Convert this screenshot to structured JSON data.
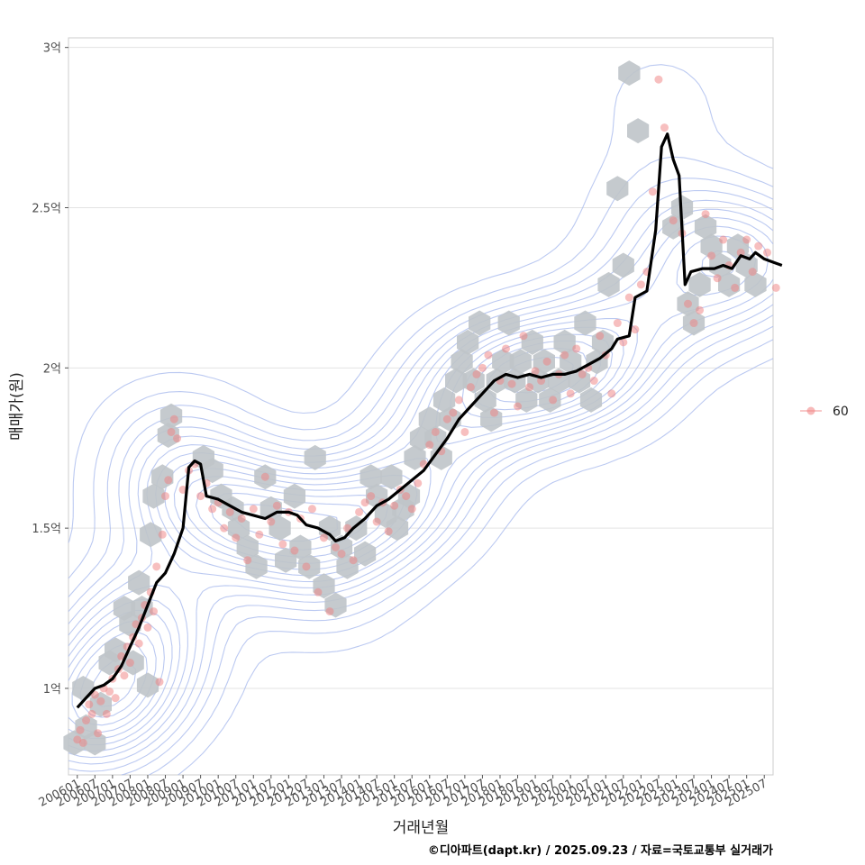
{
  "chart_data": {
    "type": "scatter",
    "title": "",
    "xlabel": "거래년월",
    "ylabel": "매매가(원)",
    "caption": "©디아파트(dapt.kr) / 2025.09.23 / 자료=국토교통부 실거래가",
    "ylim": [
      0.73,
      3.03
    ],
    "y_ticks": [
      {
        "value": 1.0,
        "label": "1억"
      },
      {
        "value": 1.5,
        "label": "1.5억"
      },
      {
        "value": 2.0,
        "label": "2억"
      },
      {
        "value": 2.5,
        "label": "2.5억"
      },
      {
        "value": 3.0,
        "label": "3억"
      }
    ],
    "x_ticks": [
      "200601",
      "200607",
      "200701",
      "200707",
      "200801",
      "200807",
      "200901",
      "200907",
      "201001",
      "201007",
      "201101",
      "201107",
      "201201",
      "201207",
      "201301",
      "201307",
      "201401",
      "201407",
      "201501",
      "201507",
      "201601",
      "201607",
      "201701",
      "201707",
      "201801",
      "201807",
      "201901",
      "201907",
      "202001",
      "202007",
      "202101",
      "202107",
      "202201",
      "202207",
      "202301",
      "202307",
      "202401",
      "202407",
      "202501",
      "202507"
    ],
    "x_domain_months": [
      -3,
      237
    ],
    "legend": {
      "position": "right",
      "entries": [
        {
          "label": "60",
          "color": "#f08080"
        }
      ]
    },
    "series": [
      {
        "name": "moving-average",
        "style": "line",
        "color": "#000000",
        "points": [
          [
            0,
            0.94
          ],
          [
            3,
            0.97
          ],
          [
            6,
            1.0
          ],
          [
            9,
            1.01
          ],
          [
            12,
            1.03
          ],
          [
            15,
            1.07
          ],
          [
            18,
            1.13
          ],
          [
            21,
            1.19
          ],
          [
            24,
            1.26
          ],
          [
            27,
            1.33
          ],
          [
            30,
            1.36
          ],
          [
            33,
            1.42
          ],
          [
            36,
            1.5
          ],
          [
            38,
            1.69
          ],
          [
            40,
            1.71
          ],
          [
            42,
            1.7
          ],
          [
            44,
            1.6
          ],
          [
            48,
            1.59
          ],
          [
            52,
            1.57
          ],
          [
            56,
            1.55
          ],
          [
            60,
            1.54
          ],
          [
            64,
            1.53
          ],
          [
            68,
            1.55
          ],
          [
            72,
            1.55
          ],
          [
            75,
            1.54
          ],
          [
            78,
            1.51
          ],
          [
            82,
            1.5
          ],
          [
            86,
            1.48
          ],
          [
            88,
            1.46
          ],
          [
            91,
            1.47
          ],
          [
            94,
            1.5
          ],
          [
            98,
            1.53
          ],
          [
            102,
            1.57
          ],
          [
            106,
            1.59
          ],
          [
            110,
            1.62
          ],
          [
            114,
            1.65
          ],
          [
            118,
            1.68
          ],
          [
            122,
            1.73
          ],
          [
            126,
            1.78
          ],
          [
            130,
            1.84
          ],
          [
            134,
            1.88
          ],
          [
            138,
            1.92
          ],
          [
            142,
            1.96
          ],
          [
            146,
            1.98
          ],
          [
            150,
            1.97
          ],
          [
            154,
            1.98
          ],
          [
            158,
            1.97
          ],
          [
            162,
            1.98
          ],
          [
            166,
            1.98
          ],
          [
            170,
            1.99
          ],
          [
            174,
            2.01
          ],
          [
            178,
            2.03
          ],
          [
            182,
            2.06
          ],
          [
            184,
            2.09
          ],
          [
            188,
            2.1
          ],
          [
            190,
            2.22
          ],
          [
            194,
            2.24
          ],
          [
            197,
            2.43
          ],
          [
            199,
            2.69
          ],
          [
            201,
            2.73
          ],
          [
            203,
            2.65
          ],
          [
            205,
            2.6
          ],
          [
            207,
            2.26
          ],
          [
            209,
            2.3
          ],
          [
            213,
            2.31
          ],
          [
            217,
            2.31
          ],
          [
            220,
            2.32
          ],
          [
            223,
            2.31
          ],
          [
            226,
            2.35
          ],
          [
            229,
            2.34
          ],
          [
            231,
            2.36
          ],
          [
            234,
            2.34
          ],
          [
            237,
            2.33
          ],
          [
            240,
            2.32
          ]
        ]
      },
      {
        "name": "60",
        "style": "points",
        "color": "#f08080",
        "points": [
          [
            0,
            0.84
          ],
          [
            1,
            0.87
          ],
          [
            2,
            0.83
          ],
          [
            3,
            0.9
          ],
          [
            4,
            0.95
          ],
          [
            5,
            0.92
          ],
          [
            6,
            0.98
          ],
          [
            7,
            0.86
          ],
          [
            8,
            0.96
          ],
          [
            9,
            1.0
          ],
          [
            10,
            0.92
          ],
          [
            11,
            0.99
          ],
          [
            12,
            1.03
          ],
          [
            13,
            0.97
          ],
          [
            14,
            1.06
          ],
          [
            15,
            1.1
          ],
          [
            16,
            1.04
          ],
          [
            17,
            1.13
          ],
          [
            18,
            1.08
          ],
          [
            19,
            1.16
          ],
          [
            20,
            1.2
          ],
          [
            21,
            1.14
          ],
          [
            22,
            1.22
          ],
          [
            23,
            1.26
          ],
          [
            24,
            1.19
          ],
          [
            25,
            1.3
          ],
          [
            26,
            1.24
          ],
          [
            27,
            1.38
          ],
          [
            28,
            1.02
          ],
          [
            29,
            1.48
          ],
          [
            30,
            1.6
          ],
          [
            31,
            1.65
          ],
          [
            32,
            1.8
          ],
          [
            33,
            1.84
          ],
          [
            34,
            1.78
          ],
          [
            36,
            1.62
          ],
          [
            38,
            1.68
          ],
          [
            40,
            1.7
          ],
          [
            42,
            1.6
          ],
          [
            44,
            1.64
          ],
          [
            46,
            1.56
          ],
          [
            48,
            1.58
          ],
          [
            50,
            1.5
          ],
          [
            52,
            1.55
          ],
          [
            54,
            1.47
          ],
          [
            56,
            1.53
          ],
          [
            58,
            1.4
          ],
          [
            60,
            1.56
          ],
          [
            62,
            1.48
          ],
          [
            64,
            1.66
          ],
          [
            66,
            1.52
          ],
          [
            68,
            1.57
          ],
          [
            70,
            1.45
          ],
          [
            72,
            1.55
          ],
          [
            74,
            1.43
          ],
          [
            76,
            1.53
          ],
          [
            78,
            1.38
          ],
          [
            80,
            1.56
          ],
          [
            82,
            1.3
          ],
          [
            84,
            1.47
          ],
          [
            86,
            1.24
          ],
          [
            88,
            1.44
          ],
          [
            90,
            1.42
          ],
          [
            92,
            1.5
          ],
          [
            94,
            1.4
          ],
          [
            96,
            1.55
          ],
          [
            98,
            1.58
          ],
          [
            100,
            1.6
          ],
          [
            102,
            1.52
          ],
          [
            104,
            1.58
          ],
          [
            106,
            1.49
          ],
          [
            108,
            1.57
          ],
          [
            110,
            1.62
          ],
          [
            112,
            1.6
          ],
          [
            114,
            1.56
          ],
          [
            116,
            1.64
          ],
          [
            118,
            1.7
          ],
          [
            120,
            1.76
          ],
          [
            122,
            1.8
          ],
          [
            124,
            1.74
          ],
          [
            126,
            1.84
          ],
          [
            128,
            1.86
          ],
          [
            130,
            1.9
          ],
          [
            132,
            1.8
          ],
          [
            134,
            1.94
          ],
          [
            136,
            1.98
          ],
          [
            138,
            2.0
          ],
          [
            140,
            2.04
          ],
          [
            142,
            1.86
          ],
          [
            144,
            1.96
          ],
          [
            146,
            2.06
          ],
          [
            148,
            1.95
          ],
          [
            150,
            1.88
          ],
          [
            152,
            2.1
          ],
          [
            154,
            1.94
          ],
          [
            156,
            1.99
          ],
          [
            158,
            1.96
          ],
          [
            160,
            2.02
          ],
          [
            162,
            1.9
          ],
          [
            164,
            1.98
          ],
          [
            166,
            2.04
          ],
          [
            168,
            1.92
          ],
          [
            170,
            2.06
          ],
          [
            172,
            1.98
          ],
          [
            174,
            2.0
          ],
          [
            176,
            1.96
          ],
          [
            178,
            2.1
          ],
          [
            180,
            2.04
          ],
          [
            182,
            1.92
          ],
          [
            184,
            2.14
          ],
          [
            186,
            2.08
          ],
          [
            188,
            2.22
          ],
          [
            190,
            2.12
          ],
          [
            192,
            2.26
          ],
          [
            194,
            2.3
          ],
          [
            196,
            2.55
          ],
          [
            198,
            2.9
          ],
          [
            200,
            2.75
          ],
          [
            203,
            2.46
          ],
          [
            206,
            2.42
          ],
          [
            208,
            2.2
          ],
          [
            210,
            2.14
          ],
          [
            212,
            2.18
          ],
          [
            214,
            2.48
          ],
          [
            216,
            2.35
          ],
          [
            218,
            2.28
          ],
          [
            220,
            2.4
          ],
          [
            222,
            2.32
          ],
          [
            224,
            2.25
          ],
          [
            226,
            2.36
          ],
          [
            228,
            2.4
          ],
          [
            230,
            2.3
          ],
          [
            232,
            2.38
          ],
          [
            235,
            2.36
          ],
          [
            238,
            2.25
          ]
        ]
      },
      {
        "name": "hex-density",
        "style": "hexbin",
        "color": "#bfc4c9",
        "points": [
          [
            -1,
            0.83
          ],
          [
            2,
            1.0
          ],
          [
            3,
            0.88
          ],
          [
            6,
            0.83
          ],
          [
            8,
            0.95
          ],
          [
            11,
            1.08
          ],
          [
            13,
            1.12
          ],
          [
            16,
            1.25
          ],
          [
            18,
            1.2
          ],
          [
            19,
            1.08
          ],
          [
            21,
            1.33
          ],
          [
            22,
            1.25
          ],
          [
            24,
            1.01
          ],
          [
            25,
            1.48
          ],
          [
            26,
            1.6
          ],
          [
            29,
            1.66
          ],
          [
            31,
            1.79
          ],
          [
            32,
            1.85
          ],
          [
            43,
            1.72
          ],
          [
            46,
            1.68
          ],
          [
            49,
            1.6
          ],
          [
            53,
            1.56
          ],
          [
            55,
            1.5
          ],
          [
            58,
            1.44
          ],
          [
            61,
            1.38
          ],
          [
            64,
            1.66
          ],
          [
            66,
            1.56
          ],
          [
            69,
            1.5
          ],
          [
            71,
            1.4
          ],
          [
            74,
            1.6
          ],
          [
            76,
            1.44
          ],
          [
            79,
            1.38
          ],
          [
            81,
            1.72
          ],
          [
            84,
            1.32
          ],
          [
            86,
            1.5
          ],
          [
            88,
            1.26
          ],
          [
            90,
            1.44
          ],
          [
            92,
            1.38
          ],
          [
            95,
            1.5
          ],
          [
            98,
            1.42
          ],
          [
            100,
            1.66
          ],
          [
            102,
            1.6
          ],
          [
            105,
            1.54
          ],
          [
            107,
            1.66
          ],
          [
            109,
            1.5
          ],
          [
            111,
            1.56
          ],
          [
            113,
            1.6
          ],
          [
            115,
            1.72
          ],
          [
            117,
            1.78
          ],
          [
            120,
            1.84
          ],
          [
            122,
            1.78
          ],
          [
            124,
            1.72
          ],
          [
            125,
            1.9
          ],
          [
            127,
            1.84
          ],
          [
            129,
            1.96
          ],
          [
            131,
            2.02
          ],
          [
            133,
            2.08
          ],
          [
            135,
            1.96
          ],
          [
            137,
            2.14
          ],
          [
            139,
            1.9
          ],
          [
            141,
            1.84
          ],
          [
            143,
            1.96
          ],
          [
            145,
            2.02
          ],
          [
            147,
            2.14
          ],
          [
            149,
            1.96
          ],
          [
            151,
            2.02
          ],
          [
            153,
            1.9
          ],
          [
            155,
            2.08
          ],
          [
            157,
            1.96
          ],
          [
            159,
            2.02
          ],
          [
            161,
            1.9
          ],
          [
            164,
            1.96
          ],
          [
            166,
            2.08
          ],
          [
            168,
            2.02
          ],
          [
            171,
            1.96
          ],
          [
            173,
            2.14
          ],
          [
            175,
            1.9
          ],
          [
            177,
            2.02
          ],
          [
            179,
            2.08
          ],
          [
            181,
            2.26
          ],
          [
            184,
            2.56
          ],
          [
            186,
            2.32
          ],
          [
            188,
            2.92
          ],
          [
            191,
            2.74
          ],
          [
            203,
            2.44
          ],
          [
            206,
            2.5
          ],
          [
            208,
            2.2
          ],
          [
            210,
            2.14
          ],
          [
            212,
            2.26
          ],
          [
            214,
            2.44
          ],
          [
            216,
            2.38
          ],
          [
            219,
            2.32
          ],
          [
            222,
            2.26
          ],
          [
            225,
            2.38
          ],
          [
            228,
            2.32
          ],
          [
            231,
            2.26
          ]
        ]
      }
    ],
    "contour_levels": 14,
    "contour_color": "#aabbee"
  }
}
